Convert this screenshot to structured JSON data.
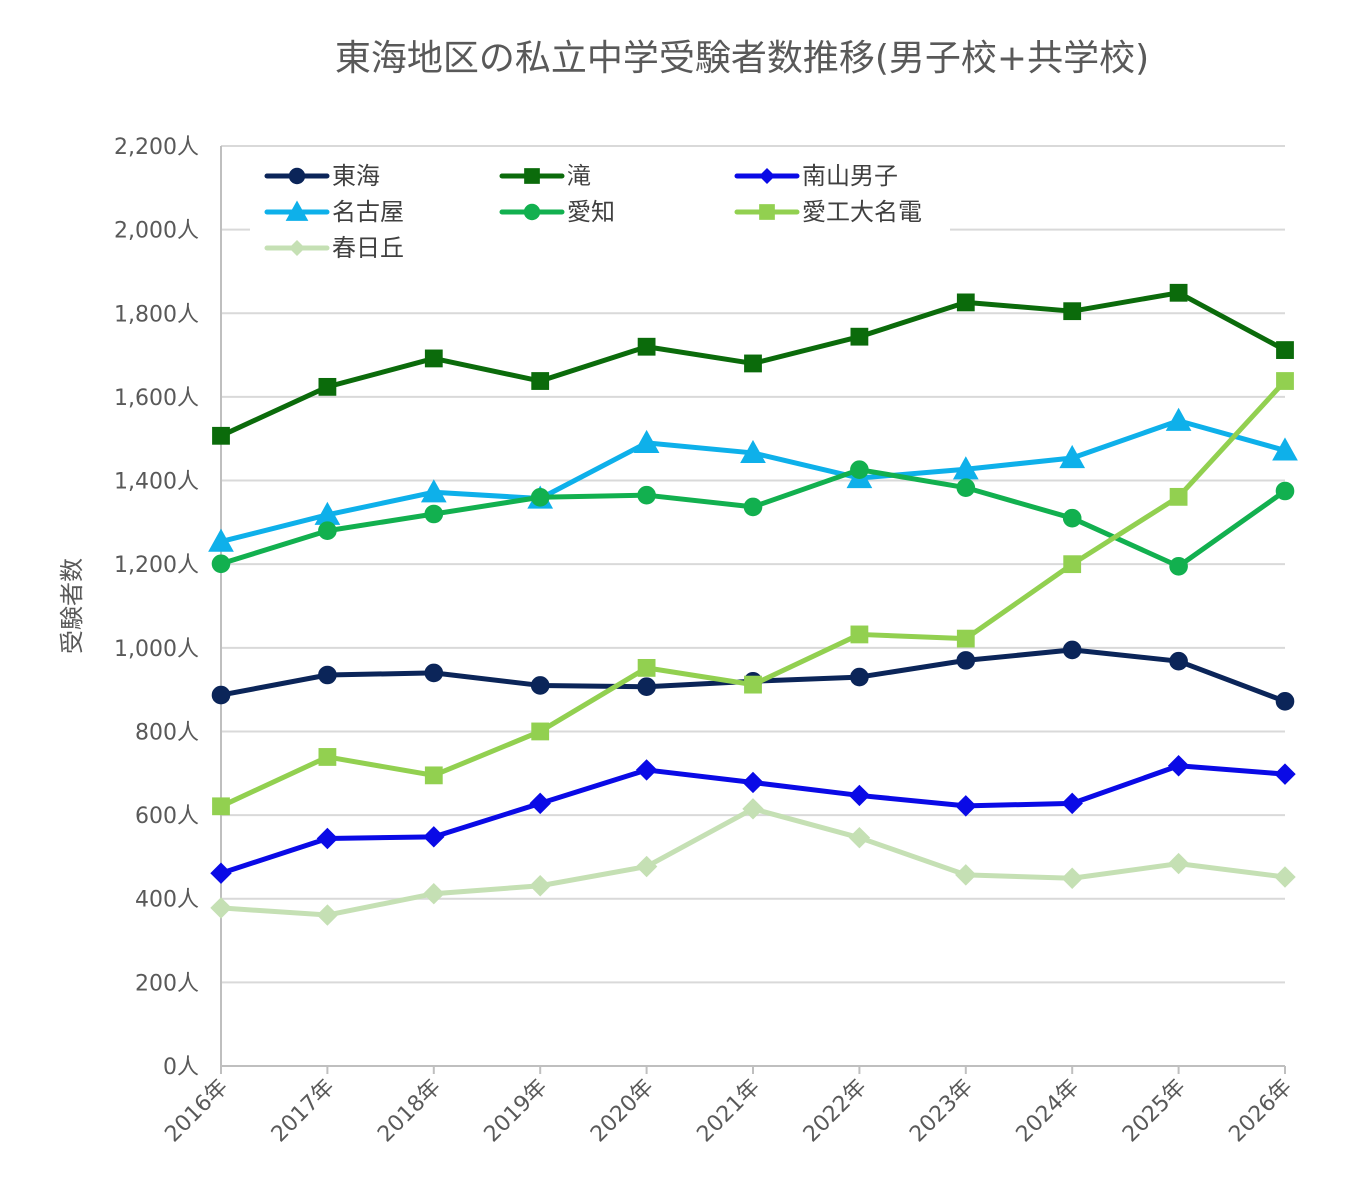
{
  "chart_data": {
    "type": "line",
    "title": "東海地区の私立中学受験者数推移(男子校+共学校)",
    "xlabel": "",
    "ylabel": "受験者数",
    "categories": [
      "2016年",
      "2017年",
      "2018年",
      "2019年",
      "2020年",
      "2021年",
      "2022年",
      "2023年",
      "2024年",
      "2025年",
      "2026年"
    ],
    "ylim": [
      0,
      2200
    ],
    "yticks": [
      {
        "value": 0,
        "label": "0人"
      },
      {
        "value": 200,
        "label": "200人"
      },
      {
        "value": 400,
        "label": "400人"
      },
      {
        "value": 600,
        "label": "600人"
      },
      {
        "value": 800,
        "label": "800人"
      },
      {
        "value": 1000,
        "label": "1,000人"
      },
      {
        "value": 1200,
        "label": "1,200人"
      },
      {
        "value": 1400,
        "label": "1,400人"
      },
      {
        "value": 1600,
        "label": "1,600人"
      },
      {
        "value": 1800,
        "label": "1,800人"
      },
      {
        "value": 2000,
        "label": "2,000人"
      },
      {
        "value": 2200,
        "label": "2,200人"
      }
    ],
    "grid": true,
    "legend_position": "top-left",
    "series": [
      {
        "name": "東海",
        "color": "#0b2559",
        "marker": "circle",
        "values": [
          887,
          935,
          940,
          910,
          907,
          920,
          930,
          970,
          995,
          968,
          872
        ]
      },
      {
        "name": "滝",
        "color": "#0b6b0b",
        "marker": "square",
        "values": [
          1507,
          1624,
          1692,
          1638,
          1720,
          1680,
          1744,
          1826,
          1805,
          1849,
          1712
        ]
      },
      {
        "name": "南山男子",
        "color": "#0a0ae6",
        "marker": "diamond",
        "values": [
          461,
          544,
          548,
          628,
          708,
          678,
          647,
          622,
          628,
          718,
          698
        ]
      },
      {
        "name": "名古屋",
        "color": "#0eb0ea",
        "marker": "triangle",
        "values": [
          1254,
          1318,
          1372,
          1357,
          1490,
          1466,
          1406,
          1427,
          1454,
          1543,
          1472
        ]
      },
      {
        "name": "愛知",
        "color": "#12b04f",
        "marker": "circle",
        "values": [
          1201,
          1280,
          1320,
          1360,
          1365,
          1337,
          1426,
          1383,
          1310,
          1195,
          1375
        ]
      },
      {
        "name": "愛工大名電",
        "color": "#92d050",
        "marker": "square",
        "values": [
          621,
          739,
          695,
          800,
          952,
          912,
          1032,
          1022,
          1200,
          1361,
          1638
        ]
      },
      {
        "name": "春日丘",
        "color": "#c5e0b4",
        "marker": "diamond",
        "values": [
          378,
          361,
          412,
          431,
          477,
          615,
          546,
          457,
          449,
          484,
          452
        ]
      }
    ]
  }
}
